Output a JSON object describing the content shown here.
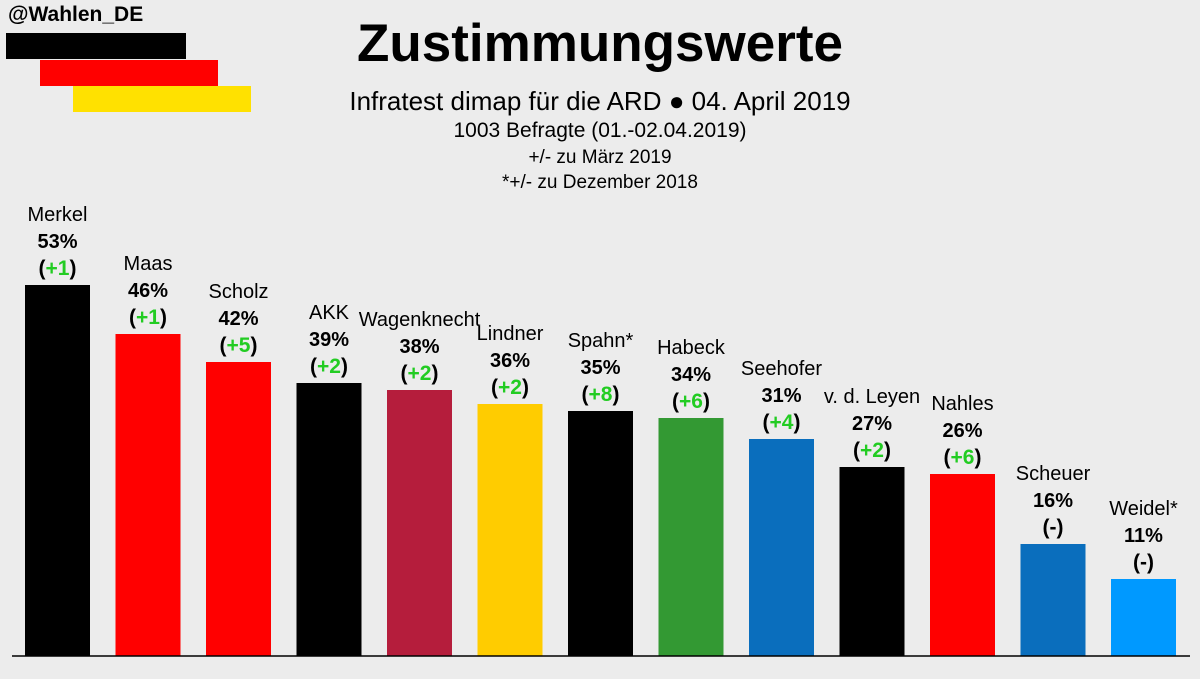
{
  "header": {
    "handle": "@Wahlen_DE",
    "title": "Zustimmungswerte",
    "subtitle": "Infratest dimap für die ARD ● 04. April 2019",
    "sample": "1003 Befragte (01.-02.04.2019)",
    "note1": "+/- zu März 2019",
    "note2": "*+/- zu Dezember 2018"
  },
  "flag_colors": [
    "#000000",
    "#ff0000",
    "#ffe100"
  ],
  "chart_data": {
    "type": "bar",
    "title": "Zustimmungswerte",
    "unit": "%",
    "ylim": [
      0,
      53
    ],
    "categories": [
      "Merkel",
      "Maas",
      "Scholz",
      "AKK",
      "Wagenknecht",
      "Lindner",
      "Spahn*",
      "Habeck",
      "Seehofer",
      "v. d. Leyen",
      "Nahles",
      "Scheuer",
      "Weidel*"
    ],
    "values": [
      53,
      46,
      42,
      39,
      38,
      36,
      35,
      34,
      31,
      27,
      26,
      16,
      11
    ],
    "value_labels": [
      "53%",
      "46%",
      "42%",
      "39%",
      "38%",
      "36%",
      "35%",
      "34%",
      "31%",
      "27%",
      "26%",
      "16%",
      "11%"
    ],
    "changes": [
      "+1",
      "+1",
      "+5",
      "+2",
      "+2",
      "+2",
      "+8",
      "+6",
      "+4",
      "+2",
      "+6",
      "-",
      "-"
    ],
    "colors": [
      "#000000",
      "#ff0000",
      "#ff0000",
      "#000000",
      "#b51d3c",
      "#ffcc00",
      "#000000",
      "#339933",
      "#0a6ebd",
      "#000000",
      "#ff0000",
      "#0a6ebd",
      "#0099ff"
    ],
    "change_color": "#22cc22"
  }
}
